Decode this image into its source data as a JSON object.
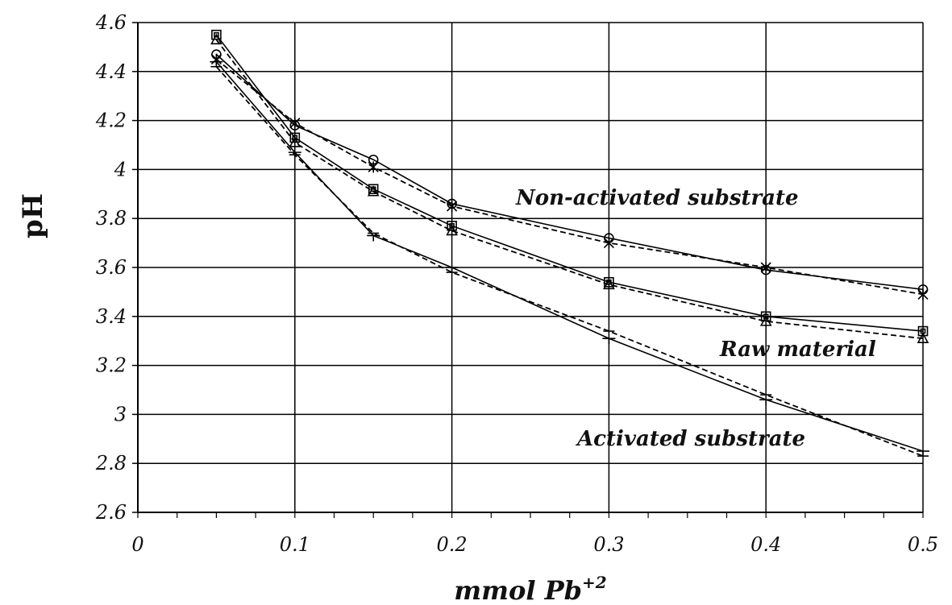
{
  "chart_data": {
    "type": "line",
    "xlabel": "mmol Pb",
    "xlabel_sup": "+2",
    "ylabel": "pH",
    "xlim": [
      0,
      0.5
    ],
    "ylim": [
      2.6,
      4.6
    ],
    "xticks": [
      "0",
      "0.1",
      "0.2",
      "0.3",
      "0.4",
      "0.5"
    ],
    "yticks": [
      "2.6",
      "2.8",
      "3",
      "3.2",
      "3.4",
      "3.6",
      "3.8",
      "4",
      "4.2",
      "4.4",
      "4.6"
    ],
    "grid": true,
    "annotations": [
      "Non-activated substrate",
      "Raw material",
      "Activated substrate"
    ],
    "series": [
      {
        "name": "Non-activated substrate",
        "style": "solid",
        "marker": "circle",
        "x": [
          0.05,
          0.1,
          0.15,
          0.2,
          0.3,
          0.4,
          0.5
        ],
        "values": [
          4.47,
          4.18,
          4.04,
          3.86,
          3.72,
          3.59,
          3.51
        ]
      },
      {
        "style": "dashed",
        "marker": "star",
        "x": [
          0.05,
          0.1,
          0.15,
          0.2,
          0.3,
          0.4,
          0.5
        ],
        "values": [
          4.45,
          4.19,
          4.01,
          3.85,
          3.7,
          3.6,
          3.49
        ]
      },
      {
        "name": "Raw material",
        "style": "solid",
        "marker": "square",
        "x": [
          0.05,
          0.1,
          0.15,
          0.2,
          0.3,
          0.4,
          0.5
        ],
        "values": [
          4.55,
          4.13,
          3.92,
          3.77,
          3.54,
          3.4,
          3.34
        ]
      },
      {
        "style": "dashed",
        "marker": "triangle",
        "x": [
          0.05,
          0.1,
          0.15,
          0.2,
          0.3,
          0.4,
          0.5
        ],
        "values": [
          4.53,
          4.11,
          3.91,
          3.75,
          3.53,
          3.38,
          3.31
        ]
      },
      {
        "name": "Activated substrate",
        "style": "solid",
        "marker": "plus",
        "x": [
          0.05,
          0.1,
          0.15,
          0.2,
          0.3,
          0.4,
          0.5
        ],
        "values": [
          4.44,
          4.07,
          3.73,
          3.6,
          3.31,
          3.06,
          2.85
        ]
      },
      {
        "style": "dashed",
        "marker": "dash",
        "x": [
          0.05,
          0.1,
          0.15,
          0.2,
          0.3,
          0.4,
          0.5
        ],
        "values": [
          4.42,
          4.06,
          3.74,
          3.58,
          3.34,
          3.08,
          2.83
        ]
      }
    ]
  }
}
